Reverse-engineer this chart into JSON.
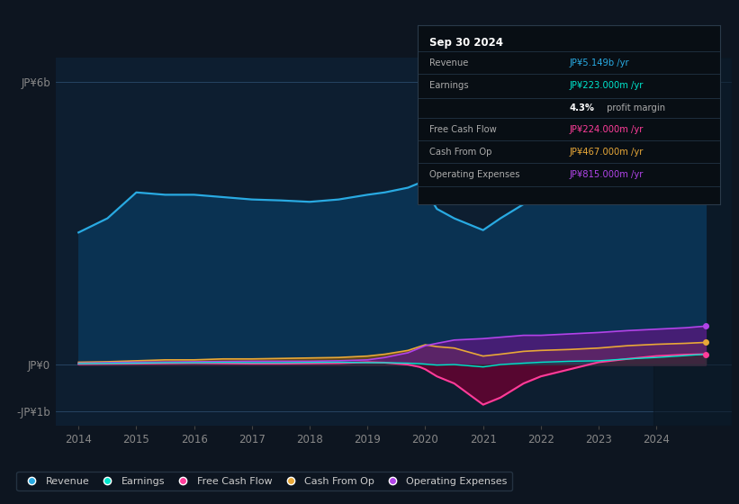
{
  "bg_color": "#0d1520",
  "plot_bg_color": "#0d1e30",
  "ylabel_top": "JP¥6b",
  "ylabel_zero": "JP¥0",
  "ylabel_bottom": "-JP¥1b",
  "revenue_color": "#29aae2",
  "earnings_color": "#00e5cc",
  "fcf_color": "#ff3d9a",
  "cop_color": "#e8a838",
  "opex_color": "#b044e8",
  "revenue_fill_color": "#0a3a5c",
  "ylim": [
    -1.3,
    6.5
  ],
  "xlim": [
    2013.6,
    2025.3
  ],
  "x_years": [
    2014,
    2014.5,
    2015,
    2015.5,
    2016,
    2016.5,
    2017,
    2017.5,
    2018,
    2018.5,
    2019,
    2019.3,
    2019.7,
    2019.9,
    2020.0,
    2020.2,
    2020.5,
    2021.0,
    2021.3,
    2021.7,
    2022.0,
    2022.5,
    2023.0,
    2023.5,
    2024.0,
    2024.5,
    2024.85
  ],
  "revenue": [
    2.8,
    3.1,
    3.65,
    3.6,
    3.6,
    3.55,
    3.5,
    3.48,
    3.45,
    3.5,
    3.6,
    3.65,
    3.75,
    3.85,
    3.7,
    3.3,
    3.1,
    2.85,
    3.1,
    3.4,
    3.6,
    3.7,
    3.85,
    4.1,
    4.6,
    5.0,
    5.15
  ],
  "earnings": [
    0.02,
    0.025,
    0.03,
    0.04,
    0.04,
    0.045,
    0.04,
    0.04,
    0.045,
    0.05,
    0.04,
    0.04,
    0.03,
    0.02,
    0.01,
    -0.01,
    0.0,
    -0.05,
    0.0,
    0.03,
    0.05,
    0.07,
    0.08,
    0.12,
    0.15,
    0.19,
    0.22
  ],
  "free_cash_flow": [
    0.01,
    0.015,
    0.02,
    0.025,
    0.03,
    0.025,
    0.02,
    0.02,
    0.025,
    0.03,
    0.05,
    0.04,
    0.0,
    -0.05,
    -0.1,
    -0.25,
    -0.4,
    -0.85,
    -0.7,
    -0.4,
    -0.25,
    -0.1,
    0.05,
    0.12,
    0.18,
    0.21,
    0.22
  ],
  "cash_from_op": [
    0.05,
    0.06,
    0.08,
    0.1,
    0.1,
    0.12,
    0.12,
    0.13,
    0.14,
    0.15,
    0.18,
    0.22,
    0.3,
    0.38,
    0.42,
    0.38,
    0.35,
    0.18,
    0.22,
    0.28,
    0.3,
    0.32,
    0.35,
    0.4,
    0.43,
    0.45,
    0.47
  ],
  "operating_expenses": [
    0.03,
    0.04,
    0.05,
    0.055,
    0.06,
    0.065,
    0.07,
    0.07,
    0.07,
    0.08,
    0.1,
    0.15,
    0.25,
    0.35,
    0.4,
    0.45,
    0.52,
    0.55,
    0.58,
    0.62,
    0.62,
    0.65,
    0.68,
    0.72,
    0.75,
    0.78,
    0.815
  ],
  "legend_items": [
    {
      "label": "Revenue",
      "color": "#29aae2"
    },
    {
      "label": "Earnings",
      "color": "#00e5cc"
    },
    {
      "label": "Free Cash Flow",
      "color": "#ff3d9a"
    },
    {
      "label": "Cash From Op",
      "color": "#e8a838"
    },
    {
      "label": "Operating Expenses",
      "color": "#b044e8"
    }
  ],
  "info_box": {
    "title": "Sep 30 2024",
    "rows": [
      {
        "label": "Revenue",
        "value": "JP¥5.149b /yr",
        "color": "#29aae2"
      },
      {
        "label": "Earnings",
        "value": "JP¥223.000m /yr",
        "color": "#00e5cc"
      },
      {
        "label": "",
        "value": "4.3% profit margin",
        "color": "#cccccc",
        "bold_prefix": "4.3%"
      },
      {
        "label": "Free Cash Flow",
        "value": "JP¥224.000m /yr",
        "color": "#ff3d9a"
      },
      {
        "label": "Cash From Op",
        "value": "JP¥467.000m /yr",
        "color": "#e8a838"
      },
      {
        "label": "Operating Expenses",
        "value": "JP¥815.000m /yr",
        "color": "#b044e8"
      }
    ]
  }
}
